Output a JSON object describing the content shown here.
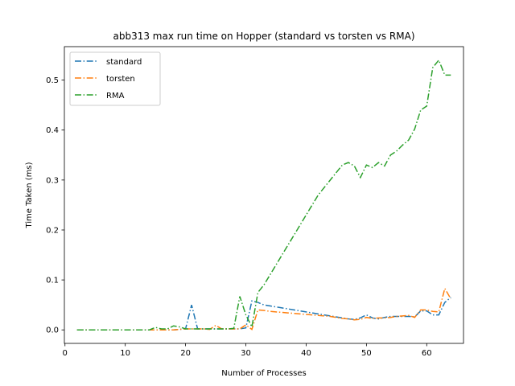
{
  "chart_data": {
    "type": "line",
    "title": "abb313 max run time on Hopper (standard vs torsten vs RMA)",
    "xlabel": "Number of Processes",
    "ylabel": "Time Taken (ms)",
    "xlim": [
      -0.1,
      66.1
    ],
    "ylim": [
      -0.027,
      0.567
    ],
    "xticks": [
      0,
      10,
      20,
      30,
      40,
      50,
      60
    ],
    "yticks": [
      0.0,
      0.1,
      0.2,
      0.3,
      0.4,
      0.5
    ],
    "ytick_labels": [
      "0.0",
      "0.1",
      "0.2",
      "0.3",
      "0.4",
      "0.5"
    ],
    "grid": false,
    "legend_position": "top-left",
    "line_style": "dash-dot",
    "x": [
      2,
      3,
      4,
      5,
      6,
      7,
      8,
      9,
      10,
      11,
      12,
      13,
      14,
      15,
      16,
      17,
      18,
      19,
      20,
      21,
      22,
      23,
      24,
      25,
      26,
      27,
      28,
      29,
      30,
      31,
      32,
      33,
      34,
      35,
      36,
      37,
      38,
      39,
      40,
      41,
      42,
      43,
      44,
      45,
      46,
      47,
      48,
      49,
      50,
      51,
      52,
      53,
      54,
      55,
      56,
      57,
      58,
      59,
      60,
      61,
      62,
      63,
      64
    ],
    "series": [
      {
        "name": "standard",
        "color": "#1f77b4",
        "values": [
          0.0,
          0.0,
          0.0,
          0.0,
          0.0,
          0.0,
          0.0,
          0.0,
          0.0,
          0.0,
          0.0,
          0.0,
          0.0,
          0.0,
          0.0,
          0.0,
          0.0,
          0.001,
          0.002,
          0.05,
          0.002,
          0.002,
          0.002,
          0.002,
          0.002,
          0.002,
          0.002,
          0.002,
          0.004,
          0.058,
          0.055,
          0.05,
          0.048,
          0.046,
          0.044,
          0.042,
          0.04,
          0.038,
          0.036,
          0.034,
          0.032,
          0.03,
          0.028,
          0.026,
          0.024,
          0.022,
          0.021,
          0.024,
          0.03,
          0.024,
          0.022,
          0.025,
          0.027,
          0.027,
          0.027,
          0.027,
          0.026,
          0.038,
          0.038,
          0.03,
          0.03,
          0.055,
          0.065
        ]
      },
      {
        "name": "torsten",
        "color": "#ff7f0e",
        "values": [
          0.0,
          0.0,
          0.0,
          0.0,
          0.0,
          0.0,
          0.0,
          0.0,
          0.0,
          0.0,
          0.0,
          0.0,
          0.0,
          0.0,
          0.0,
          0.0,
          0.0,
          0.001,
          0.002,
          0.002,
          0.002,
          0.002,
          0.001,
          0.009,
          0.002,
          0.002,
          0.002,
          0.002,
          0.01,
          0.001,
          0.04,
          0.039,
          0.037,
          0.036,
          0.035,
          0.034,
          0.033,
          0.032,
          0.031,
          0.03,
          0.029,
          0.028,
          0.027,
          0.025,
          0.023,
          0.022,
          0.02,
          0.021,
          0.025,
          0.023,
          0.024,
          0.024,
          0.025,
          0.027,
          0.028,
          0.029,
          0.025,
          0.04,
          0.04,
          0.037,
          0.036,
          0.083,
          0.062
        ]
      },
      {
        "name": "RMA",
        "color": "#2ca02c",
        "values": [
          0.0,
          0.0,
          0.0,
          0.0,
          0.0,
          0.0,
          0.0,
          0.0,
          0.0,
          0.0,
          0.0,
          0.0,
          0.0,
          0.005,
          0.002,
          0.002,
          0.008,
          0.006,
          0.002,
          0.002,
          0.002,
          0.002,
          0.002,
          0.002,
          0.002,
          0.002,
          0.003,
          0.067,
          0.03,
          0.006,
          0.075,
          0.09,
          0.11,
          0.13,
          0.15,
          0.17,
          0.19,
          0.21,
          0.23,
          0.25,
          0.27,
          0.285,
          0.3,
          0.315,
          0.33,
          0.335,
          0.328,
          0.305,
          0.33,
          0.325,
          0.335,
          0.328,
          0.35,
          0.358,
          0.37,
          0.38,
          0.402,
          0.44,
          0.448,
          0.525,
          0.54,
          0.51,
          0.51
        ]
      }
    ]
  }
}
